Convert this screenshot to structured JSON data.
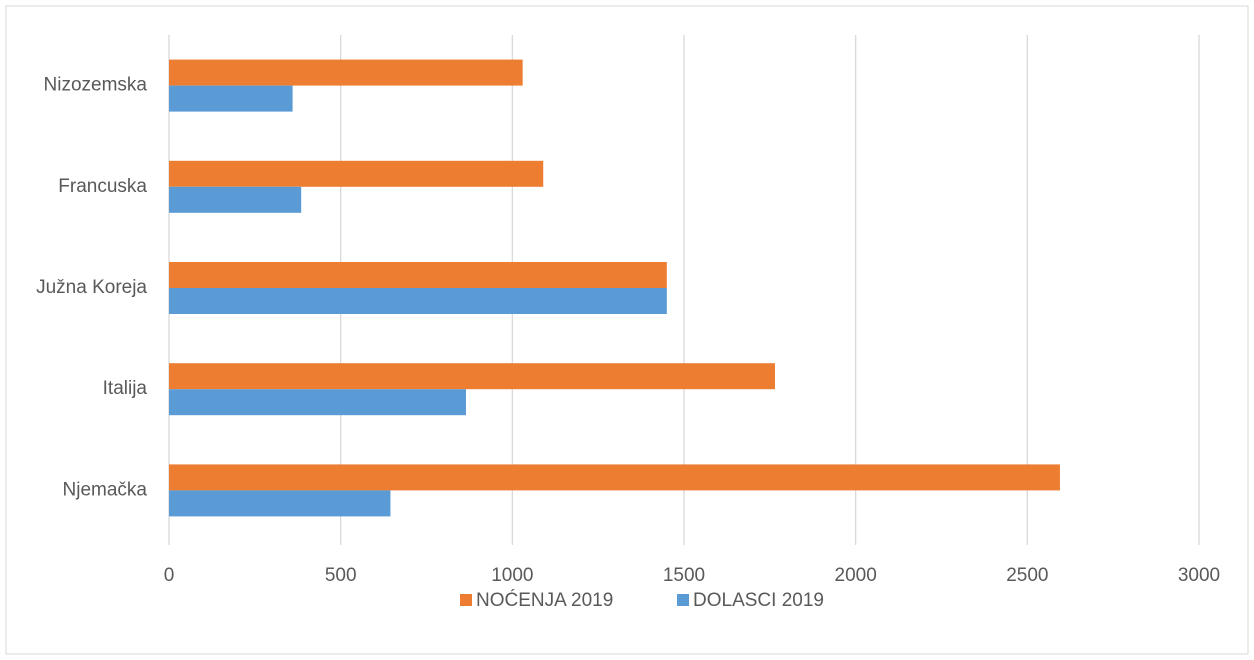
{
  "chart_data": {
    "type": "hbar",
    "categories": [
      "Njemačka",
      "Italija",
      "Južna Koreja",
      "Francuska",
      "Nizozemska"
    ],
    "series": [
      {
        "name": "NOĆENJA 2019",
        "color": "#ed7d31",
        "values": [
          2595,
          1765,
          1450,
          1090,
          1030
        ]
      },
      {
        "name": "DOLASCI 2019",
        "color": "#5b9bd5",
        "values": [
          645,
          865,
          1450,
          385,
          360
        ]
      }
    ],
    "xlim": [
      0,
      3000
    ],
    "xticks": [
      0,
      500,
      1000,
      1500,
      2000,
      2500,
      3000
    ],
    "grid": true,
    "legend": "bottom"
  }
}
